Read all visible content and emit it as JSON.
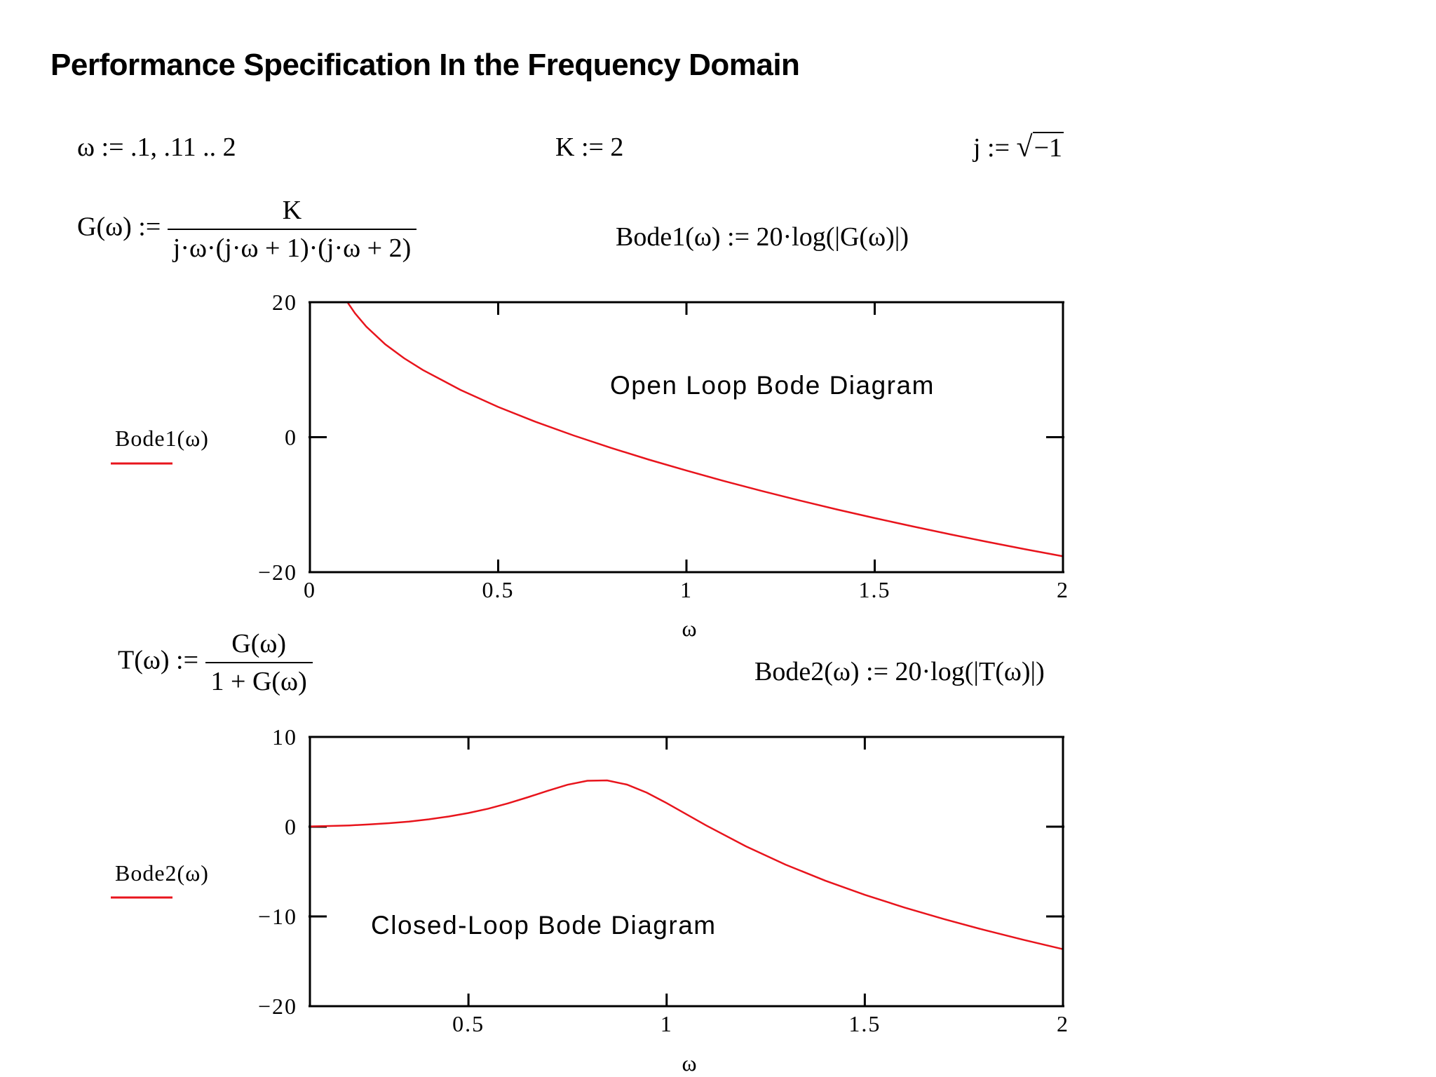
{
  "page": {
    "title": "Performance Specification In the Frequency Domain"
  },
  "definitions": {
    "omega_range": "ω := .1, .11 .. 2",
    "k_def": "K := 2",
    "j_lhs": "j :=",
    "j_sqrt_arg": "−1",
    "g_lhs": "G(ω) :=",
    "g_num": "K",
    "g_den": "j·ω·(j·ω + 1)·(j·ω + 2)",
    "bode1_def": "Bode1(ω) := 20·log(|G(ω)|)",
    "t_lhs": "T(ω) :=",
    "t_num": "G(ω)",
    "t_den": "1 + G(ω)",
    "bode2_def": "Bode2(ω) := 20·log(|T(ω)|)"
  },
  "chart_data": [
    {
      "type": "line",
      "title": "Open Loop Bode Diagram",
      "xlabel": "ω",
      "ylabel": "Bode1(ω)",
      "xlim": [
        0,
        2
      ],
      "ylim": [
        -20,
        20
      ],
      "x_ticks": [
        "0",
        "0.5",
        "1",
        "1.5",
        "2"
      ],
      "y_ticks": [
        "20",
        "0",
        "−20"
      ],
      "series": [
        {
          "name": "Bode1(ω)",
          "color": "#e8141c",
          "x": [
            0.1,
            0.12,
            0.15,
            0.2,
            0.25,
            0.3,
            0.4,
            0.5,
            0.6,
            0.7,
            0.8,
            0.9,
            1.0,
            1.1,
            1.2,
            1.3,
            1.4,
            1.5,
            1.6,
            1.7,
            1.8,
            1.9,
            2.0
          ],
          "y": [
            19.97,
            18.35,
            16.37,
            13.77,
            11.7,
            9.95,
            7.0,
            4.48,
            2.26,
            0.26,
            -1.59,
            -3.32,
            -4.95,
            -6.5,
            -7.97,
            -9.37,
            -10.71,
            -11.99,
            -13.21,
            -14.39,
            -15.52,
            -16.61,
            -17.65
          ]
        }
      ]
    },
    {
      "type": "line",
      "title": "Closed-Loop Bode Diagram",
      "xlabel": "ω",
      "ylabel": "Bode2(ω)",
      "xlim": [
        0.1,
        2
      ],
      "ylim": [
        -20,
        10
      ],
      "x_ticks": [
        "0.5",
        "1",
        "1.5",
        "2"
      ],
      "y_ticks": [
        "10",
        "0",
        "−10",
        "−20"
      ],
      "series": [
        {
          "name": "Bode2(ω)",
          "color": "#e8141c",
          "x": [
            0.1,
            0.15,
            0.2,
            0.25,
            0.3,
            0.35,
            0.4,
            0.45,
            0.5,
            0.55,
            0.6,
            0.65,
            0.7,
            0.75,
            0.8,
            0.85,
            0.9,
            0.95,
            1.0,
            1.1,
            1.2,
            1.3,
            1.4,
            1.5,
            1.6,
            1.7,
            1.8,
            1.9,
            2.0
          ],
          "y": [
            0.03,
            0.08,
            0.14,
            0.25,
            0.39,
            0.57,
            0.82,
            1.13,
            1.52,
            2.01,
            2.6,
            3.28,
            4.0,
            4.67,
            5.12,
            5.16,
            4.69,
            3.79,
            2.63,
            0.13,
            -2.19,
            -4.23,
            -6.01,
            -7.59,
            -9.01,
            -10.3,
            -11.49,
            -12.6,
            -13.65
          ]
        }
      ]
    }
  ]
}
